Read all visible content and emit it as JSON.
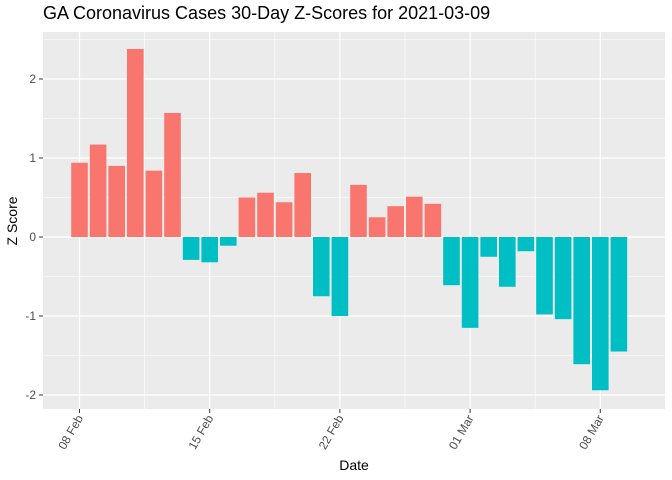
{
  "chart_data": {
    "type": "bar",
    "title": "GA Coronavirus Cases 30-Day Z-Scores for 2021-03-09",
    "xlabel": "Date",
    "ylabel": "Z Score",
    "ylim": [
      -2.2,
      2.5
    ],
    "y_ticks": [
      -2,
      -1,
      0,
      1,
      2
    ],
    "x_ticks": [
      "08 Feb",
      "15 Feb",
      "22 Feb",
      "01 Mar",
      "08 Mar"
    ],
    "x_tick_days": [
      0,
      7,
      14,
      21,
      28
    ],
    "legend": "none",
    "grid": true,
    "positive_color": "#F8766D",
    "negative_color": "#00BFC4",
    "panel_color": "#EBEBEB",
    "days": [
      0,
      1,
      2,
      3,
      4,
      5,
      6,
      7,
      8,
      9,
      10,
      11,
      12,
      13,
      14,
      15,
      16,
      17,
      18,
      19,
      20,
      21,
      22,
      23,
      24,
      25,
      26,
      27,
      28,
      29
    ],
    "values": [
      0.94,
      1.17,
      0.9,
      2.38,
      0.84,
      1.57,
      -0.29,
      -0.32,
      -0.11,
      0.5,
      0.56,
      0.44,
      0.81,
      -0.75,
      -1.0,
      0.66,
      0.25,
      0.39,
      0.51,
      0.42,
      -0.61,
      -1.15,
      -0.25,
      -0.63,
      -0.18,
      -0.98,
      -1.04,
      -1.61,
      -1.94,
      -1.45
    ]
  }
}
